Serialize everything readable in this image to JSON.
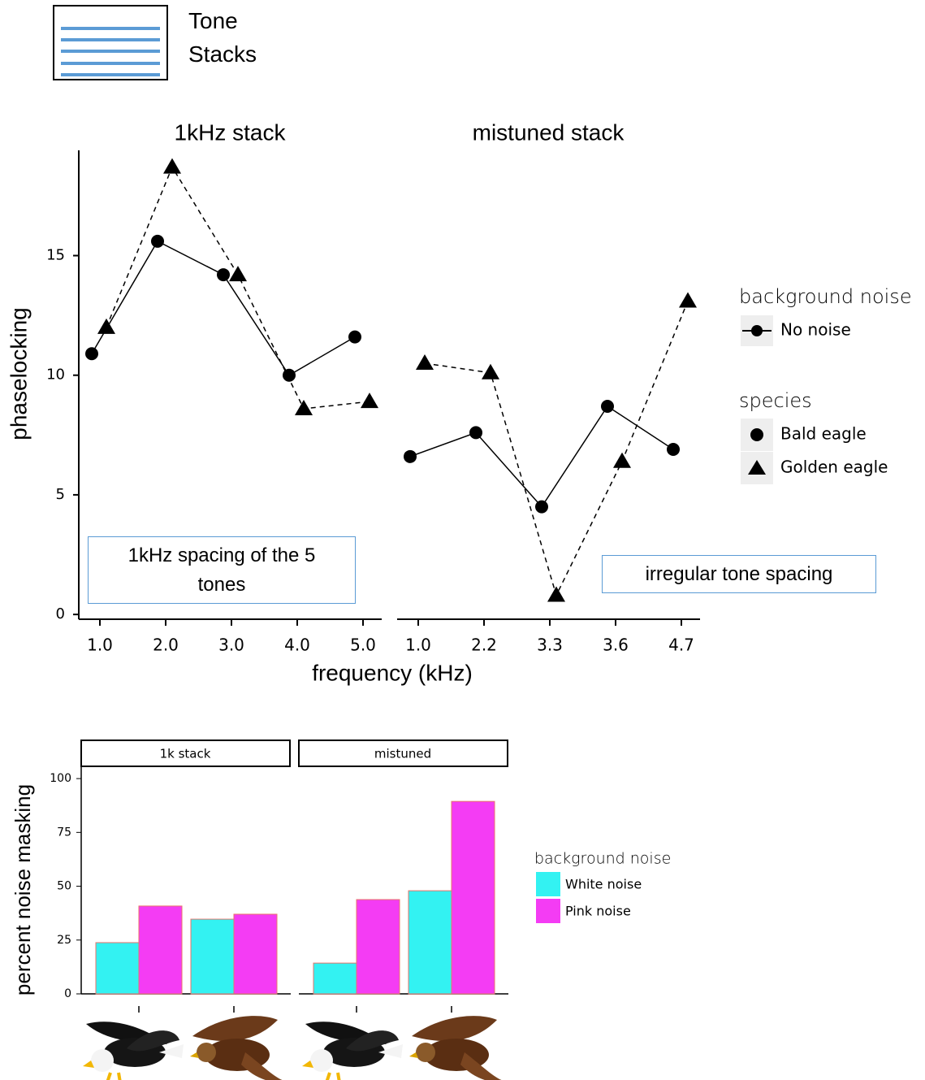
{
  "chart_data": [
    {
      "type": "line",
      "inset_label": "Tone Stacks",
      "xlabel": "frequency (kHz)",
      "ylabel": "phaselocking",
      "ylim": [
        -0.2,
        19.4
      ],
      "yticks": [
        0,
        5,
        10,
        15
      ],
      "panels": [
        {
          "title": "1kHz stack",
          "categories": [
            "1.0",
            "2.0",
            "3.0",
            "4.0",
            "5.0"
          ],
          "annotation": "1kHz spacing of the 5 tones"
        },
        {
          "title": "mistuned stack",
          "categories": [
            "1.0",
            "2.2",
            "3.3",
            "3.6",
            "4.7"
          ],
          "annotation": "irregular tone spacing"
        }
      ],
      "noise_legend": {
        "title": "background noise",
        "entries": [
          "No noise"
        ]
      },
      "legend_title": "species",
      "series": [
        {
          "name": "Bald eagle",
          "color": "#000000",
          "marker": "circle",
          "dashed": false,
          "values": [
            [
              10.9,
              15.6,
              14.2,
              10.0,
              11.6
            ],
            [
              6.6,
              7.6,
              4.5,
              8.7,
              6.9
            ]
          ]
        },
        {
          "name": "Golden eagle",
          "color": "#000000",
          "marker": "triangle",
          "dashed": true,
          "values": [
            [
              12.0,
              18.7,
              14.2,
              8.6,
              8.9
            ],
            [
              10.5,
              10.1,
              0.8,
              6.4,
              13.1
            ]
          ]
        }
      ]
    },
    {
      "type": "bar",
      "ylabel": "percent noise masking",
      "ylim": [
        0,
        105.7
      ],
      "yticks": [
        0,
        25,
        50,
        75,
        100
      ],
      "panels": [
        {
          "title": "1k stack",
          "categories": [
            null,
            null
          ]
        },
        {
          "title": "mistuned",
          "categories": [
            null,
            null
          ]
        }
      ],
      "legend_title": "background noise",
      "series": [
        {
          "name": "White noise",
          "color": "#33f2f2",
          "values": [
            [
              23.8,
              34.7
            ],
            [
              14.3,
              47.9
            ]
          ]
        },
        {
          "name": "Pink noise",
          "color": "#f43cf4",
          "values": [
            [
              40.8,
              37.0
            ],
            [
              43.8,
              89.4
            ]
          ]
        }
      ]
    }
  ]
}
